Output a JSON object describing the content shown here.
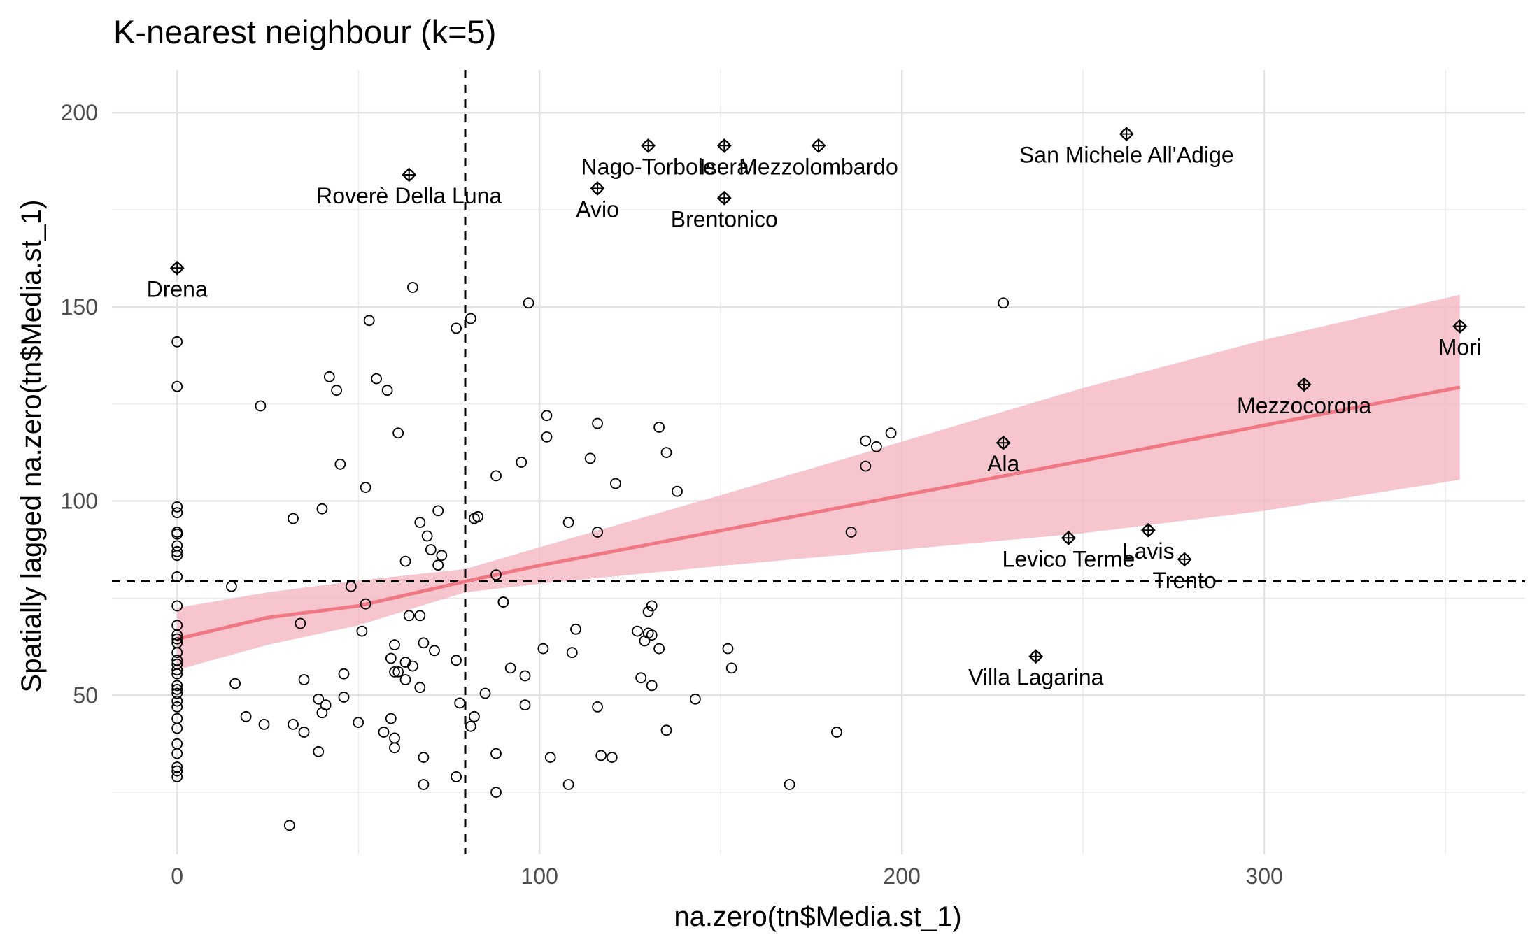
{
  "chart_data": {
    "type": "scatter",
    "title": "K-nearest neighbour (k=5)",
    "xlabel": "na.zero(tn$Media.st_1)",
    "ylabel": "Spatially lagged na.zero(tn$Media.st_1)",
    "xlim": [
      -18,
      372
    ],
    "ylim": [
      9,
      211
    ],
    "x_ticks": [
      0,
      100,
      200,
      300
    ],
    "x_tick_labels": [
      "0",
      "100",
      "200",
      "300"
    ],
    "y_ticks": [
      50,
      100,
      150,
      200
    ],
    "y_tick_labels": [
      "50",
      "100",
      "150",
      "200"
    ],
    "grid": true,
    "mean_lines": {
      "x": 79.5,
      "y": 79.3
    },
    "regression": {
      "color": "#F07885",
      "band_color": "#F4B6C2",
      "x": [
        0,
        25,
        50,
        79.5,
        100,
        150,
        200,
        250,
        300,
        354
      ],
      "fit": [
        64.5,
        70,
        73,
        79.3,
        83.4,
        92.4,
        101.4,
        110.4,
        119.5,
        129.3
      ],
      "lower": [
        56.5,
        63,
        68,
        76.5,
        78.7,
        83.3,
        87.5,
        91.7,
        97.5,
        105.5
      ],
      "upper": [
        72.5,
        76.5,
        79.5,
        82.5,
        88.1,
        101.5,
        115.3,
        129.1,
        141.5,
        153.1
      ]
    },
    "influential_points": [
      {
        "label": "Drena",
        "x": 0,
        "y": 160
      },
      {
        "label": "Roverè Della Luna",
        "x": 64,
        "y": 184
      },
      {
        "label": "Nago-Torbole",
        "x": 130,
        "y": 191.5
      },
      {
        "label": "Avio",
        "x": 116,
        "y": 180.5
      },
      {
        "label": "Isera",
        "x": 151,
        "y": 191.5
      },
      {
        "label": "Mezzolombardo",
        "x": 177,
        "y": 191.5
      },
      {
        "label": "Brentonico",
        "x": 151,
        "y": 178
      },
      {
        "label": "San Michele All'Adige",
        "x": 262,
        "y": 194.5
      },
      {
        "label": "Mori",
        "x": 354,
        "y": 145
      },
      {
        "label": "Mezzocorona",
        "x": 311,
        "y": 130
      },
      {
        "label": "Ala",
        "x": 228,
        "y": 115
      },
      {
        "label": "Levico Terme",
        "x": 246,
        "y": 90.5
      },
      {
        "label": "Lavis",
        "x": 268,
        "y": 92.5
      },
      {
        "label": "Trento",
        "x": 278,
        "y": 85
      },
      {
        "label": "Villa Lagarina",
        "x": 237,
        "y": 60
      }
    ],
    "points": [
      [
        0,
        141
      ],
      [
        0,
        129.5
      ],
      [
        0,
        98.5
      ],
      [
        0,
        97
      ],
      [
        0,
        92
      ],
      [
        0,
        91.5
      ],
      [
        0,
        88.5
      ],
      [
        0,
        87
      ],
      [
        0,
        86
      ],
      [
        0,
        80.5
      ],
      [
        0,
        73
      ],
      [
        0,
        68
      ],
      [
        0,
        65.5
      ],
      [
        0,
        64.5
      ],
      [
        0,
        63.5
      ],
      [
        0,
        61
      ],
      [
        0,
        59
      ],
      [
        0,
        58
      ],
      [
        0,
        56.5
      ],
      [
        0,
        55.5
      ],
      [
        0,
        52.5
      ],
      [
        0,
        51.5
      ],
      [
        0,
        50.5
      ],
      [
        0,
        48.5
      ],
      [
        0,
        47
      ],
      [
        0,
        44
      ],
      [
        0,
        41.5
      ],
      [
        0,
        37.5
      ],
      [
        0,
        35
      ],
      [
        0,
        31.5
      ],
      [
        0,
        30.5
      ],
      [
        0,
        29
      ],
      [
        65,
        155
      ],
      [
        53,
        146.5
      ],
      [
        42,
        132
      ],
      [
        55,
        131.5
      ],
      [
        44,
        128.5
      ],
      [
        58,
        128.5
      ],
      [
        23,
        124.5
      ],
      [
        61,
        117.5
      ],
      [
        45,
        109.5
      ],
      [
        52,
        103.5
      ],
      [
        40,
        98
      ],
      [
        32,
        95.5
      ],
      [
        67,
        94.5
      ],
      [
        72,
        97.5
      ],
      [
        69,
        91
      ],
      [
        70,
        87.5
      ],
      [
        73,
        86
      ],
      [
        63,
        84.5
      ],
      [
        72,
        83.5
      ],
      [
        15,
        78
      ],
      [
        48,
        78
      ],
      [
        52,
        73.5
      ],
      [
        64,
        70.5
      ],
      [
        67,
        70.5
      ],
      [
        34,
        68.5
      ],
      [
        51,
        66.5
      ],
      [
        68,
        63.5
      ],
      [
        60,
        63
      ],
      [
        71,
        61.5
      ],
      [
        77,
        59
      ],
      [
        59,
        59.5
      ],
      [
        63,
        58.5
      ],
      [
        61,
        56
      ],
      [
        65,
        57.5
      ],
      [
        63,
        54
      ],
      [
        60,
        56
      ],
      [
        16,
        53
      ],
      [
        35,
        54
      ],
      [
        46,
        55.5
      ],
      [
        67,
        52
      ],
      [
        46,
        49.5
      ],
      [
        39,
        49
      ],
      [
        41,
        47.5
      ],
      [
        40,
        45.5
      ],
      [
        19,
        44.5
      ],
      [
        59,
        44
      ],
      [
        24,
        42.5
      ],
      [
        32,
        42.5
      ],
      [
        50,
        43
      ],
      [
        35,
        40.5
      ],
      [
        57,
        40.5
      ],
      [
        60,
        39
      ],
      [
        60,
        36.5
      ],
      [
        39,
        35.5
      ],
      [
        68,
        34
      ],
      [
        68,
        27
      ],
      [
        78,
        48
      ],
      [
        77,
        29
      ],
      [
        31,
        16.5
      ],
      [
        77,
        144.5
      ],
      [
        81,
        147
      ],
      [
        97,
        151
      ],
      [
        102,
        122
      ],
      [
        116,
        120
      ],
      [
        102,
        116.5
      ],
      [
        133,
        119
      ],
      [
        135,
        112.5
      ],
      [
        114,
        111
      ],
      [
        95,
        110
      ],
      [
        88,
        106.5
      ],
      [
        121,
        104.5
      ],
      [
        138,
        102.5
      ],
      [
        82,
        95.5
      ],
      [
        83,
        96
      ],
      [
        108,
        94.5
      ],
      [
        116,
        92
      ],
      [
        88,
        81
      ],
      [
        90,
        74
      ],
      [
        90,
        74
      ],
      [
        131,
        73
      ],
      [
        130,
        71.5
      ],
      [
        110,
        67
      ],
      [
        127,
        66.5
      ],
      [
        130,
        66
      ],
      [
        131,
        65.5
      ],
      [
        129,
        64
      ],
      [
        133,
        62
      ],
      [
        101,
        62
      ],
      [
        109,
        61
      ],
      [
        92,
        57
      ],
      [
        96,
        55
      ],
      [
        128,
        54.5
      ],
      [
        131,
        52.5
      ],
      [
        85,
        50.5
      ],
      [
        96,
        47.5
      ],
      [
        116,
        47
      ],
      [
        143,
        49
      ],
      [
        82,
        44.5
      ],
      [
        81,
        42
      ],
      [
        88,
        35
      ],
      [
        103,
        34
      ],
      [
        117,
        34.5
      ],
      [
        120,
        34
      ],
      [
        135,
        41
      ],
      [
        108,
        27
      ],
      [
        88,
        25
      ],
      [
        152,
        62
      ],
      [
        153,
        57
      ],
      [
        169,
        27
      ],
      [
        182,
        40.5
      ],
      [
        186,
        92
      ],
      [
        190,
        109
      ],
      [
        190,
        115.5
      ],
      [
        193,
        114
      ],
      [
        197,
        117.5
      ],
      [
        228,
        151
      ]
    ]
  }
}
